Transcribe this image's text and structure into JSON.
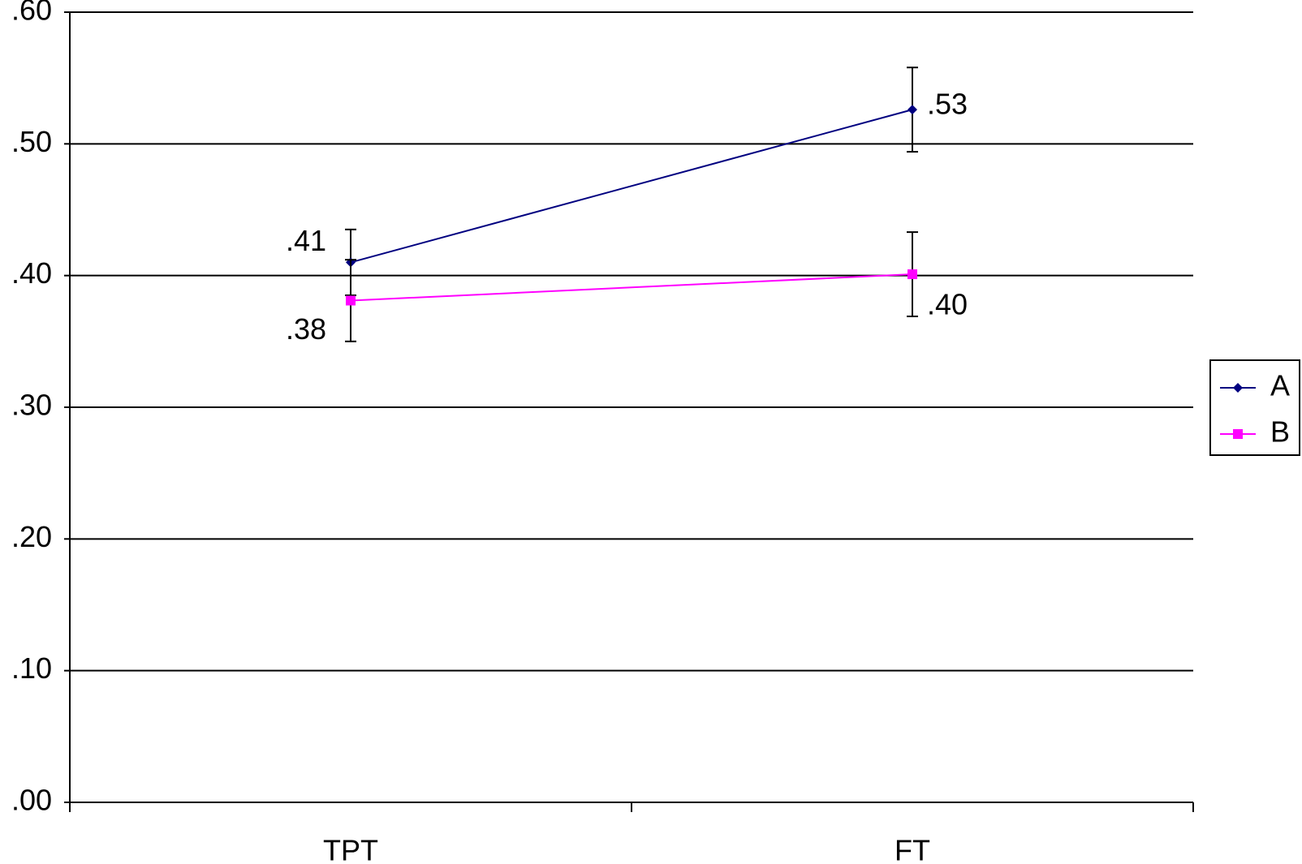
{
  "chart_data": {
    "type": "line",
    "categories": [
      "TPT",
      "FT"
    ],
    "series": [
      {
        "name": "A",
        "color": "#000080",
        "marker": "diamond",
        "values": [
          0.41,
          0.526
        ],
        "value_labels": [
          ".41",
          ".53"
        ],
        "errors": [
          0.025,
          0.032
        ]
      },
      {
        "name": "B",
        "color": "#ff00ff",
        "marker": "square",
        "values": [
          0.381,
          0.401
        ],
        "value_labels": [
          ".38",
          ".40"
        ],
        "errors": [
          0.031,
          0.032
        ]
      }
    ],
    "ylim": [
      0,
      0.6
    ],
    "yticks": [
      {
        "value": 0,
        "label": ".00"
      },
      {
        "value": 0.1,
        "label": ".10"
      },
      {
        "value": 0.2,
        "label": ".20"
      },
      {
        "value": 0.3,
        "label": ".30"
      },
      {
        "value": 0.4,
        "label": ".40"
      },
      {
        "value": 0.5,
        "label": ".50"
      },
      {
        "value": 0.6,
        "label": ".60"
      }
    ],
    "grid": true,
    "legend": "right"
  }
}
